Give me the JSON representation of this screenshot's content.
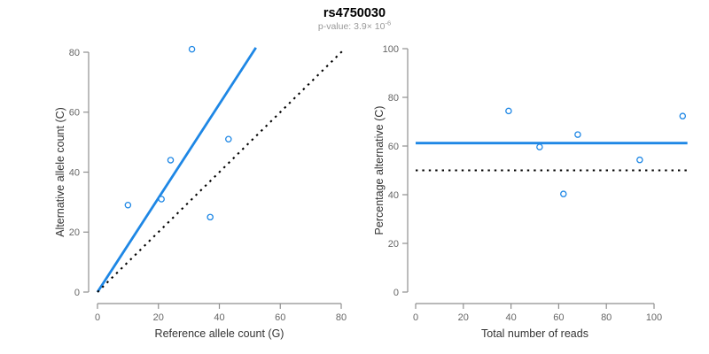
{
  "header": {
    "title": "rs4750030",
    "pvalue_prefix": "p-value: 3.9× 10",
    "pvalue_exponent": "-6"
  },
  "colors": {
    "accent_blue": "#1E87E5",
    "dotted_line": "#000000",
    "axis_line": "#8f8f8f",
    "tick_label": "#666666",
    "axis_title": "#333333",
    "point_fill": "#ffffff"
  },
  "chart_data": [
    {
      "type": "scatter",
      "name": "allele-counts-plot",
      "xlabel": "Reference allele count (G)",
      "ylabel": "Alternative allele count (C)",
      "xlim": [
        0,
        80
      ],
      "ylim": [
        0,
        81.5
      ],
      "xticks": [
        0,
        20,
        40,
        60,
        80
      ],
      "yticks": [
        0,
        20,
        40,
        60,
        80
      ],
      "grid": false,
      "legend": false,
      "points": [
        [
          10,
          29
        ],
        [
          21,
          31
        ],
        [
          24,
          44
        ],
        [
          31,
          81
        ],
        [
          37,
          25
        ],
        [
          43,
          51
        ]
      ],
      "lines": [
        {
          "name": "fit-line",
          "style": "solid",
          "color": "#1E87E5",
          "from": [
            0,
            0
          ],
          "to": [
            52,
            81.5
          ]
        },
        {
          "name": "identity-line",
          "style": "dotted",
          "color": "#000000",
          "from": [
            0,
            0
          ],
          "to": [
            81,
            81
          ]
        }
      ]
    },
    {
      "type": "scatter",
      "name": "percentage-alternative-plot",
      "xlabel": "Total number of reads",
      "ylabel": "Percentage alternative (C)",
      "xlim": [
        0,
        114
      ],
      "ylim": [
        0,
        100
      ],
      "xticks": [
        0,
        20,
        40,
        60,
        80,
        100
      ],
      "yticks": [
        0,
        20,
        40,
        60,
        80,
        100
      ],
      "grid": false,
      "legend": false,
      "points": [
        [
          39,
          74.4
        ],
        [
          52,
          59.6
        ],
        [
          62,
          40.3
        ],
        [
          68,
          64.7
        ],
        [
          94,
          54.3
        ],
        [
          112,
          72.3
        ]
      ],
      "lines": [
        {
          "name": "mean-line",
          "style": "solid",
          "color": "#1E87E5",
          "from": [
            0,
            61.2
          ],
          "to": [
            114,
            61.2
          ]
        },
        {
          "name": "fifty-percent-line",
          "style": "dotted",
          "color": "#000000",
          "from": [
            0,
            50
          ],
          "to": [
            114,
            50
          ]
        }
      ]
    }
  ]
}
